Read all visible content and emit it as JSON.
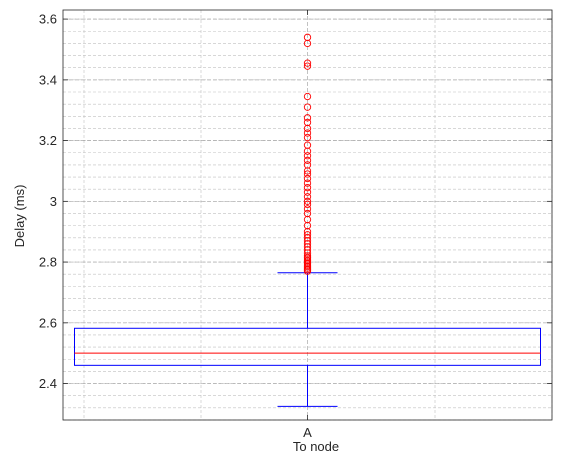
{
  "chart_data": {
    "type": "box",
    "title": "",
    "xlabel": "To node",
    "ylabel": "Delay (ms)",
    "categories": [
      "A"
    ],
    "ylim": [
      2.28,
      3.63
    ],
    "yticks": [
      2.4,
      2.6,
      2.8,
      3,
      3.2,
      3.4,
      3.6
    ],
    "ytick_labels": [
      "2.4",
      "2.6",
      "2.8",
      "3",
      "3.2",
      "3.4",
      "3.6"
    ],
    "grid": true,
    "minor_grid": true,
    "box": {
      "category": "A",
      "whisker_low": 2.325,
      "q1": 2.46,
      "median": 2.5,
      "q3": 2.582,
      "whisker_high": 2.765,
      "outliers": [
        2.77,
        2.775,
        2.78,
        2.785,
        2.79,
        2.795,
        2.8,
        2.805,
        2.81,
        2.815,
        2.82,
        2.83,
        2.84,
        2.85,
        2.86,
        2.87,
        2.88,
        2.89,
        2.9,
        2.92,
        2.94,
        2.96,
        2.975,
        2.99,
        3.0,
        3.015,
        3.03,
        3.045,
        3.06,
        3.075,
        3.09,
        3.1,
        3.12,
        3.135,
        3.15,
        3.165,
        3.185,
        3.21,
        3.225,
        3.24,
        3.26,
        3.275,
        3.31,
        3.345,
        3.445,
        3.455,
        3.52,
        3.54
      ]
    },
    "colors": {
      "box": "#0000ff",
      "median": "#ff0000",
      "outlier": "#ff0000",
      "grid": "#c0c0c0",
      "axis": "#262626"
    }
  }
}
